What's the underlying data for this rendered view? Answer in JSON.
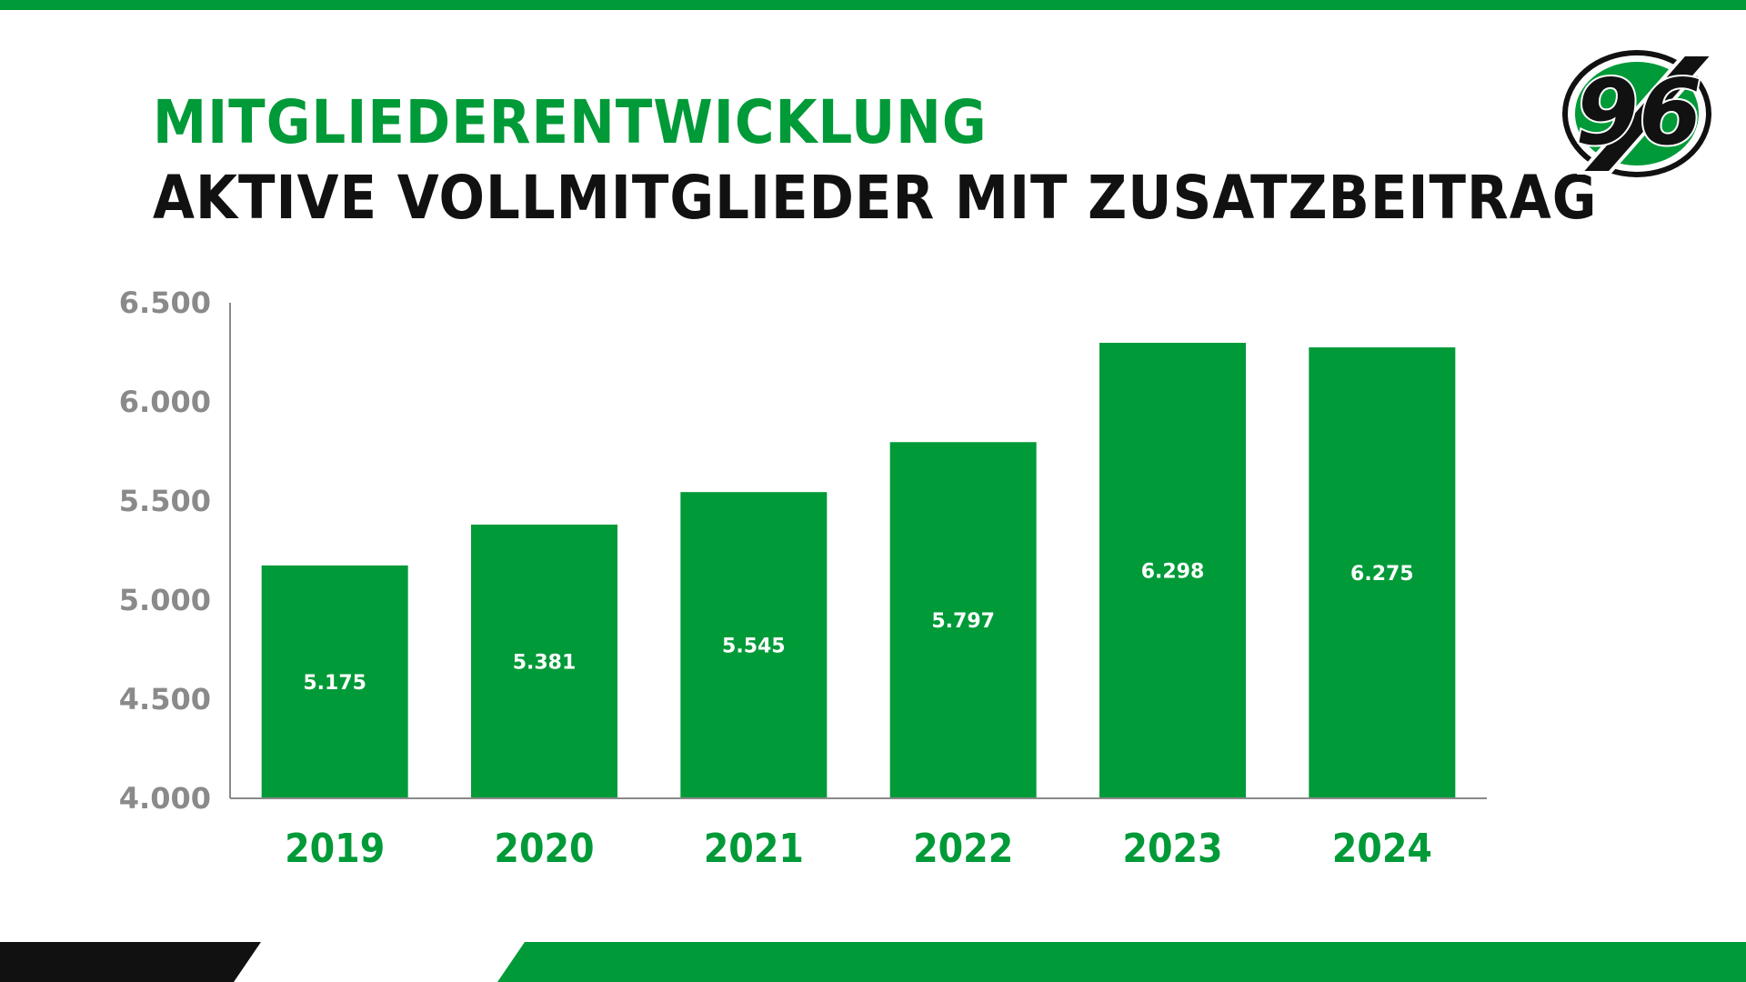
{
  "colors": {
    "brand_green": "#009a38",
    "dark": "#111111",
    "axis_gray": "#8a8a8a",
    "bar_label": "#ffffff"
  },
  "header": {
    "title": "MITGLIEDERENTWICKLUNG",
    "subtitle": "AKTIVE VOLLMITGLIEDER MIT ZUSATZBEITRAG"
  },
  "logo": {
    "icon": "club-crest-96-icon",
    "text": "96"
  },
  "chart_data": {
    "type": "bar",
    "title": "MITGLIEDERENTWICKLUNG",
    "subtitle": "AKTIVE VOLLMITGLIEDER MIT ZUSATZBEITRAG",
    "categories": [
      "2019",
      "2020",
      "2021",
      "2022",
      "2023",
      "2024"
    ],
    "values": [
      5175,
      5381,
      5545,
      5797,
      6298,
      6275
    ],
    "value_labels": [
      "5.175",
      "5.381",
      "5.545",
      "5.797",
      "6.298",
      "6.275"
    ],
    "ylim": [
      4000,
      6500
    ],
    "yticks": [
      4000,
      4500,
      5000,
      5500,
      6000,
      6500
    ],
    "ytick_labels": [
      "4.000",
      "4.500",
      "5.000",
      "5.500",
      "6.000",
      "6.500"
    ],
    "xlabel": "",
    "ylabel": "",
    "grid": false,
    "legend": "none",
    "bar_color": "#009a38"
  }
}
